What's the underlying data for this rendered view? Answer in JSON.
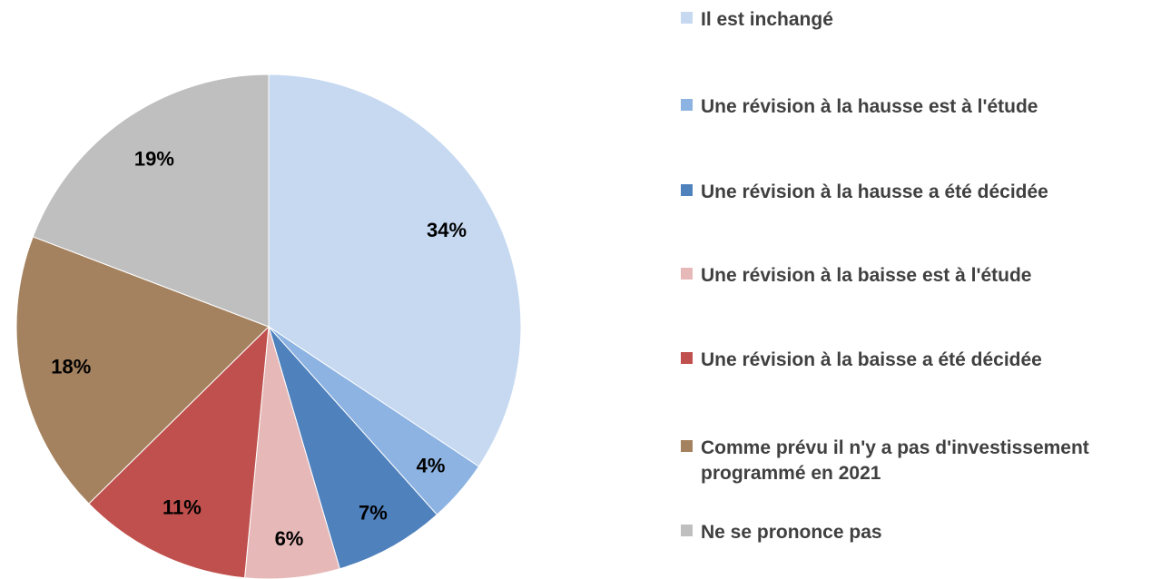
{
  "chart_data": {
    "type": "pie",
    "categories": [
      "Il est inchangé",
      "Une révision à la hausse est à l'étude",
      "Une révision à la hausse a été décidée",
      "Une révision à la baisse est à l'étude",
      "Une révision à la baisse a été décidée",
      "Comme prévu il n'y a pas d'investissement programmé en 2021",
      "Ne se prononce pas"
    ],
    "values": [
      34,
      4,
      7,
      6,
      11,
      18,
      19
    ],
    "value_labels": [
      "34%",
      "4%",
      "7%",
      "6%",
      "11%",
      "18%",
      "19%"
    ],
    "colors": [
      "#c6d9f1",
      "#8db3e2",
      "#4f81bd",
      "#e6b9b8",
      "#c0504d",
      "#a5825f",
      "#bfbfbf"
    ]
  }
}
